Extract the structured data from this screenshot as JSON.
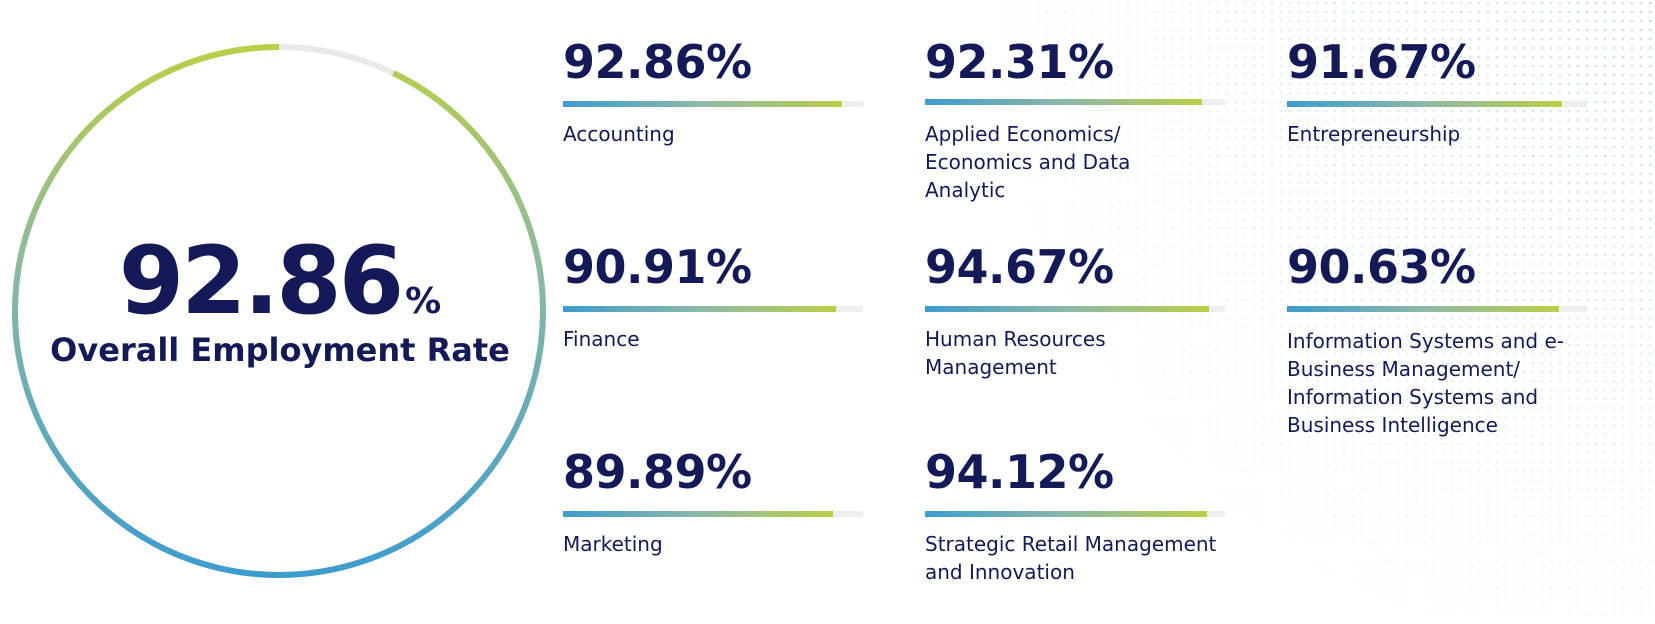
{
  "overall": {
    "value": "92.86",
    "unit": "%",
    "label": "Overall Employment Rate",
    "rate": 92.86
  },
  "colors": {
    "navy": "#141a57",
    "gradient_start": "#3d9cce",
    "gradient_end": "#b9cf48",
    "track": "#eeeeee"
  },
  "chart_data": {
    "type": "bar",
    "title": "",
    "unit": "%",
    "ylim": [
      0,
      100
    ],
    "categories": [
      "Accounting",
      "Applied Economics/ Economics and Data Analytic",
      "Entrepreneurship",
      "Finance",
      "Human Resources Management",
      "Information Systems and e-Business Management/ Information Systems and Business Intelligence",
      "Marketing",
      "Strategic Retail Management and Innovation"
    ],
    "values": [
      92.86,
      92.31,
      91.67,
      90.91,
      94.67,
      90.63,
      89.89,
      94.12
    ],
    "items": [
      {
        "value_text": "92.86%",
        "label": "Accounting",
        "value": 92.86
      },
      {
        "value_text": "92.31%",
        "label": "Applied Economics/ Economics and Data Analytic",
        "value": 92.31
      },
      {
        "value_text": "91.67%",
        "label": "Entrepreneurship",
        "value": 91.67
      },
      {
        "value_text": "90.91%",
        "label": "Finance",
        "value": 90.91
      },
      {
        "value_text": "94.67%",
        "label": "Human Resources Management",
        "value": 94.67
      },
      {
        "value_text": "90.63%",
        "label": "Information Systems and e-Business Management/ Information Systems and Business Intelligence",
        "value": 90.63
      },
      {
        "value_text": "89.89%",
        "label": "Marketing",
        "value": 89.89
      },
      {
        "value_text": "94.12%",
        "label": "Strategic Retail Management and Innovation",
        "value": 94.12
      }
    ]
  }
}
